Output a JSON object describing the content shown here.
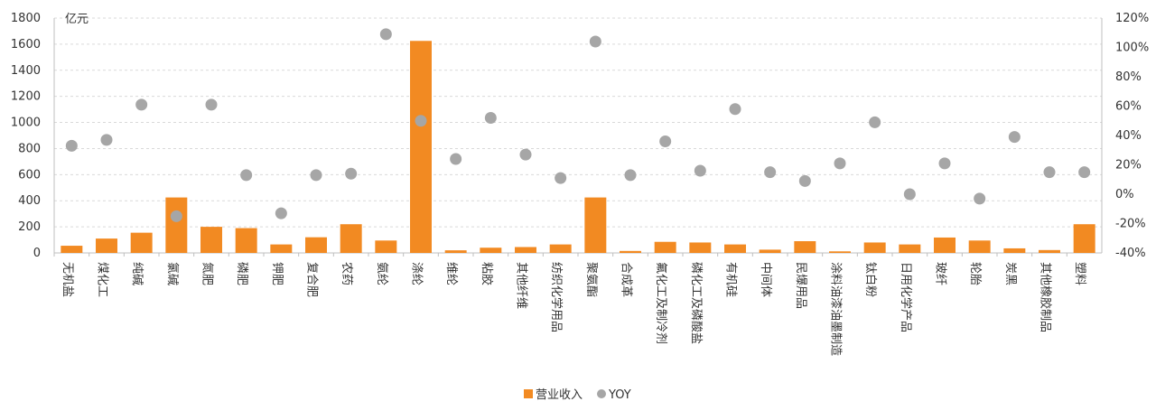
{
  "chart_data": {
    "type": "bar",
    "y_unit": "亿元",
    "categories": [
      "无机盐",
      "煤化工",
      "纯碱",
      "氯碱",
      "氮肥",
      "磷肥",
      "钾肥",
      "复合肥",
      "农药",
      "氨纶",
      "涤纶",
      "维纶",
      "粘胶",
      "其他纤维",
      "纺织化学用品",
      "聚氨酯",
      "合成革",
      "氟化工及制冷剂",
      "磷化工及磷酸盐",
      "有机硅",
      "中间体",
      "民爆用品",
      "涂料油漆油墨制造",
      "钛白粉",
      "日用化学产品",
      "玻纤",
      "轮胎",
      "炭黑",
      "其他橡胶制品",
      "塑料"
    ],
    "series": [
      {
        "name": "营业收入",
        "type": "bar",
        "axis": "left",
        "color": "#F28A22",
        "values": [
          55,
          110,
          155,
          425,
          200,
          190,
          65,
          120,
          220,
          95,
          1625,
          20,
          40,
          45,
          65,
          425,
          15,
          85,
          80,
          65,
          25,
          90,
          12,
          80,
          65,
          118,
          95,
          35,
          22,
          220
        ]
      },
      {
        "name": "YOY",
        "type": "scatter",
        "axis": "right",
        "color": "#A6A6A6",
        "values": [
          33,
          37,
          61,
          -15,
          61,
          13,
          -13,
          13,
          14,
          109,
          50,
          24,
          52,
          27,
          11,
          104,
          13,
          36,
          16,
          58,
          15,
          9,
          21,
          49,
          0,
          21,
          -3,
          39,
          15,
          15
        ]
      }
    ],
    "left_axis": {
      "ylim": [
        0,
        1800
      ],
      "ticks": [
        0,
        200,
        400,
        600,
        800,
        1000,
        1200,
        1400,
        1600,
        1800
      ]
    },
    "right_axis": {
      "ylim": [
        -40,
        120
      ],
      "ticks": [
        "-40%",
        "-20%",
        "0%",
        "20%",
        "40%",
        "60%",
        "80%",
        "100%",
        "120%"
      ]
    },
    "grid": true,
    "legend_position": "bottom-center"
  }
}
